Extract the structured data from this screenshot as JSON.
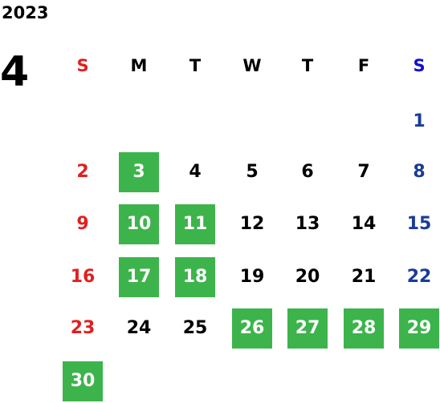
{
  "year": "2023",
  "month": "4",
  "weekdays": [
    "S",
    "M",
    "T",
    "W",
    "T",
    "F",
    "S"
  ],
  "weeks": [
    [
      null,
      null,
      null,
      null,
      null,
      null,
      {
        "day": 1
      }
    ],
    [
      {
        "day": 2
      },
      {
        "day": 3,
        "highlight": true
      },
      {
        "day": 4
      },
      {
        "day": 5
      },
      {
        "day": 6
      },
      {
        "day": 7
      },
      {
        "day": 8
      }
    ],
    [
      {
        "day": 9
      },
      {
        "day": 10,
        "highlight": true
      },
      {
        "day": 11,
        "highlight": true
      },
      {
        "day": 12
      },
      {
        "day": 13
      },
      {
        "day": 14
      },
      {
        "day": 15
      }
    ],
    [
      {
        "day": 16
      },
      {
        "day": 17,
        "highlight": true
      },
      {
        "day": 18,
        "highlight": true
      },
      {
        "day": 19
      },
      {
        "day": 20
      },
      {
        "day": 21
      },
      {
        "day": 22
      }
    ],
    [
      {
        "day": 23
      },
      {
        "day": 24
      },
      {
        "day": 25
      },
      {
        "day": 26,
        "highlight": true
      },
      {
        "day": 27,
        "highlight": true
      },
      {
        "day": 28,
        "highlight": true
      },
      {
        "day": 29,
        "highlight": true
      }
    ],
    [
      {
        "day": 30,
        "highlight": true
      },
      null,
      null,
      null,
      null,
      null,
      null
    ]
  ]
}
